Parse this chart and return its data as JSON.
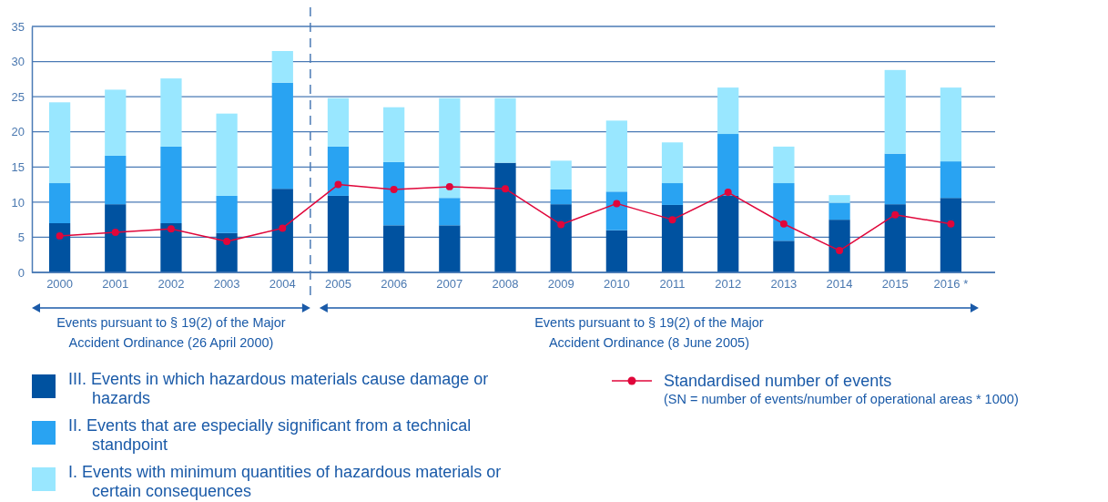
{
  "chart_data": {
    "type": "bar",
    "stacked": true,
    "categories": [
      "2000",
      "2001",
      "2002",
      "2003",
      "2004",
      "2005",
      "2006",
      "2007",
      "2008",
      "2009",
      "2010",
      "2011",
      "2012",
      "2013",
      "2014",
      "2015",
      "2016 *"
    ],
    "series": [
      {
        "name": "III. Events in which hazardous materials cause damage or hazards",
        "color": "#0052a0",
        "values": [
          7.0,
          9.7,
          7.0,
          5.6,
          11.9,
          10.9,
          6.7,
          6.7,
          15.6,
          9.7,
          6.0,
          9.6,
          10.9,
          4.5,
          7.5,
          9.7,
          10.6
        ]
      },
      {
        "name": "II. Events that are especially significant from a technical standpoint",
        "color": "#29a3f2",
        "values": [
          5.7,
          6.9,
          10.9,
          5.3,
          15.1,
          7.0,
          9.0,
          3.9,
          0,
          2.1,
          5.5,
          3.1,
          8.8,
          8.2,
          2.4,
          7.2,
          5.2
        ]
      },
      {
        "name": "I. Events with minimum quantities of hazardous materials or certain consequences",
        "color": "#99e7ff",
        "values": [
          11.5,
          9.4,
          9.7,
          11.7,
          4.5,
          6.9,
          7.8,
          14.2,
          9.2,
          4.1,
          10.1,
          5.8,
          6.6,
          5.2,
          1.1,
          11.9,
          10.5
        ]
      },
      {
        "name": "Standardised number of events",
        "type": "line",
        "color": "#e0063a",
        "marker": "circle",
        "values": [
          5.2,
          5.7,
          6.2,
          4.4,
          6.3,
          12.5,
          11.8,
          12.2,
          11.9,
          6.8,
          9.8,
          7.5,
          11.4,
          6.9,
          3.1,
          8.2,
          6.9
        ]
      }
    ],
    "ylim": [
      0,
      35
    ],
    "yticks": [
      0,
      5,
      10,
      15,
      20,
      25,
      30,
      35
    ],
    "grid": "y",
    "legend": "bottom",
    "annotations": [
      "Events pursuant to § 19(2) of the Major Accident Ordinance (26 April 2000)",
      "Events pursuant to § 19(2) of the Major Accident Ordinance (8 June 2005)",
      "(SN = number of events/number of operational areas * 1000)"
    ]
  }
}
